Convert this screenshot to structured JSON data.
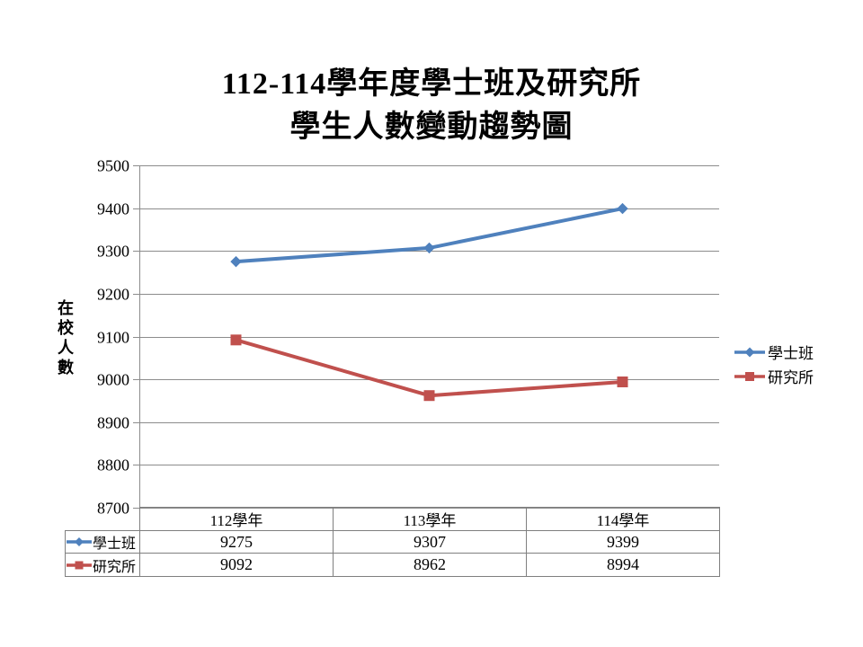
{
  "title": {
    "line1": "112-114學年度學士班及研究所",
    "line2": "學生人數變動趨勢圖"
  },
  "chart_data": {
    "type": "line",
    "title": "112-114學年度學士班及研究所學生人數變動趨勢圖",
    "categories": [
      "112學年",
      "113學年",
      "114學年"
    ],
    "series": [
      {
        "name": "學士班",
        "values": [
          9275,
          9307,
          9399
        ],
        "color": "#4f81bd",
        "marker": "diamond"
      },
      {
        "name": "研究所",
        "values": [
          9092,
          8962,
          8994
        ],
        "color": "#c0504d",
        "marker": "square"
      }
    ],
    "xlabel": "",
    "ylabel": "在校人數",
    "ylim": [
      8700,
      9500
    ],
    "ytick_step": 100,
    "grid": "horizontal",
    "legend_position": "right",
    "data_table_shown": true
  },
  "colors": {
    "gridline": "#8c8c8c",
    "axis_line": "#8c8c8c",
    "table_border": "#7f7f7f",
    "text": "#000000",
    "background": "#ffffff"
  }
}
